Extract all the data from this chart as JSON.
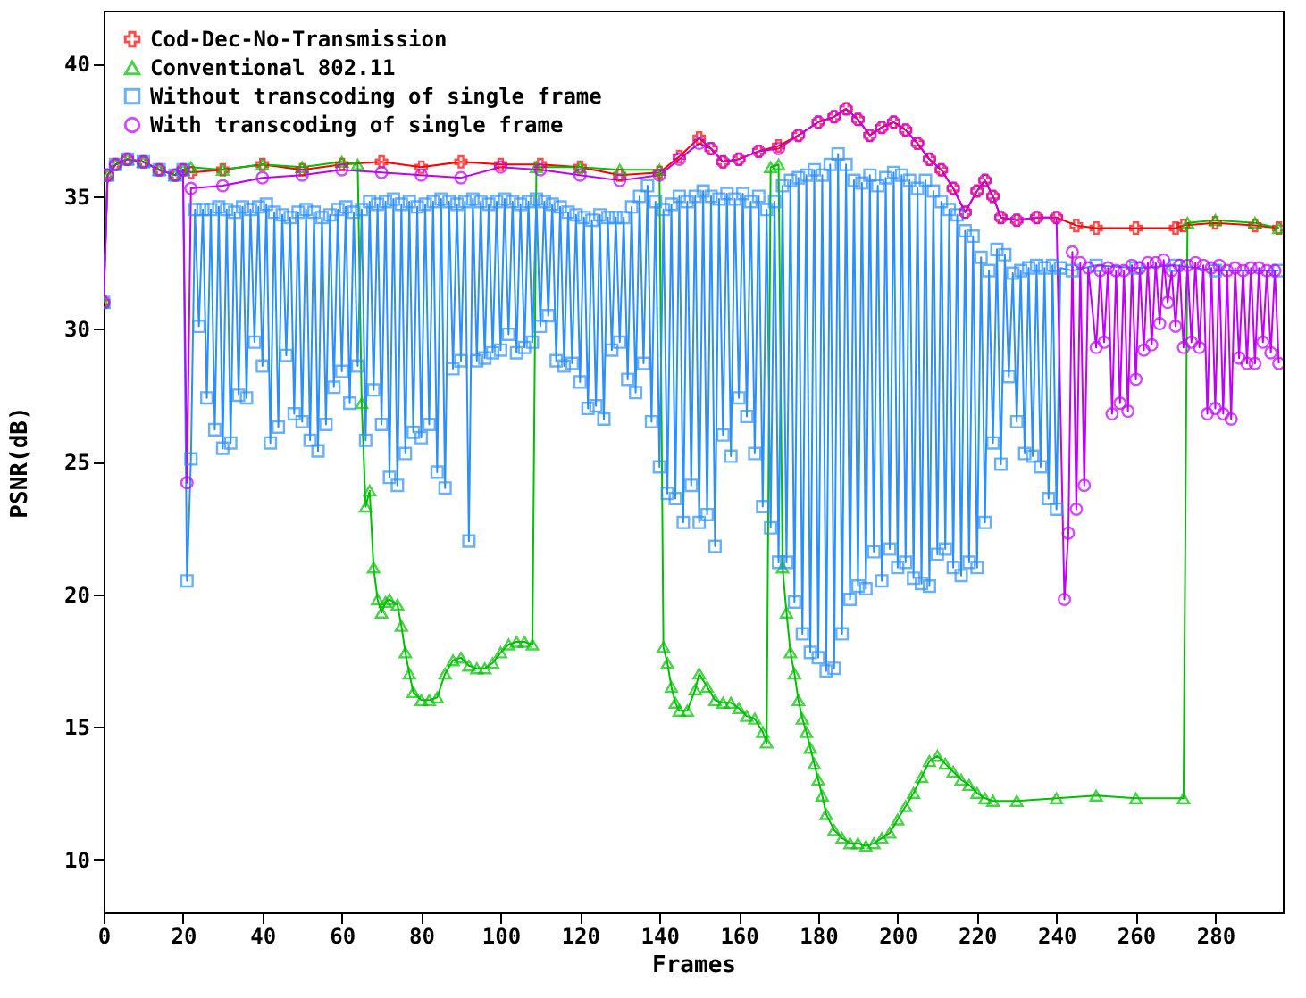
{
  "chart_data": {
    "type": "line",
    "xlabel": "Frames",
    "ylabel": "PSNR(dB)",
    "xlim": [
      0,
      297
    ],
    "xticks": [
      0,
      20,
      40,
      60,
      80,
      100,
      120,
      140,
      160,
      180,
      200,
      220,
      240,
      260,
      280
    ],
    "ylim": [
      8,
      42
    ],
    "yticks": [
      10,
      15,
      20,
      25,
      30,
      35,
      40
    ],
    "grid": false,
    "legend": "top left",
    "series": [
      {
        "name": "Cod-Dec-No-Transmission",
        "color": "#ff0000",
        "marker": "cross",
        "x": [
          0,
          1,
          3,
          6,
          10,
          14,
          18,
          20,
          22,
          30,
          40,
          50,
          60,
          70,
          80,
          90,
          100,
          110,
          120,
          130,
          140,
          145,
          150,
          153,
          156,
          160,
          165,
          170,
          175,
          180,
          184,
          187,
          190,
          193,
          196,
          199,
          202,
          205,
          208,
          211,
          214,
          217,
          220,
          222,
          224,
          226,
          230,
          235,
          240,
          245,
          250,
          260,
          270,
          272,
          280,
          290,
          296
        ],
        "values": [
          31,
          35.8,
          36.2,
          36.4,
          36.3,
          36,
          35.8,
          36,
          35.9,
          36,
          36.2,
          36,
          36.2,
          36.3,
          36.1,
          36.3,
          36.2,
          36.2,
          36.1,
          35.8,
          35.9,
          36.5,
          37.2,
          36.8,
          36.3,
          36.4,
          36.7,
          36.9,
          37.3,
          37.8,
          38,
          38.3,
          37.9,
          37.3,
          37.6,
          37.8,
          37.5,
          37,
          36.4,
          36,
          35.3,
          34.4,
          35.2,
          35.6,
          35,
          34.2,
          34.1,
          34.2,
          34.2,
          33.9,
          33.8,
          33.8,
          33.8,
          33.9,
          34,
          33.9,
          33.8
        ]
      },
      {
        "name": "Conventional 802.11",
        "color": "#00c000",
        "marker": "triangle",
        "x": [
          0,
          1,
          3,
          6,
          10,
          14,
          18,
          20,
          22,
          30,
          40,
          50,
          60,
          64,
          65,
          66,
          67,
          68,
          69,
          70,
          71,
          72,
          74,
          75,
          76,
          77,
          78,
          80,
          82,
          84,
          86,
          88,
          90,
          92,
          94,
          96,
          98,
          100,
          102,
          104,
          106,
          108,
          109,
          120,
          130,
          140,
          141,
          142,
          143,
          144,
          145,
          147,
          149,
          150,
          152,
          154,
          156,
          158,
          160,
          162,
          164,
          166,
          167,
          168,
          170,
          171,
          172,
          173,
          174,
          175,
          176,
          177,
          178,
          179,
          180,
          181,
          182,
          184,
          186,
          188,
          190,
          192,
          194,
          196,
          198,
          200,
          202,
          204,
          206,
          208,
          210,
          212,
          214,
          216,
          218,
          220,
          222,
          224,
          230,
          240,
          250,
          260,
          272,
          273,
          280,
          290,
          296
        ],
        "values": [
          31,
          35.8,
          36.2,
          36.4,
          36.3,
          36,
          35.8,
          36,
          36.1,
          36,
          36.2,
          36.1,
          36.3,
          36.2,
          27.2,
          23.3,
          23.9,
          21,
          19.8,
          19.3,
          19.7,
          19.8,
          19.6,
          18.8,
          17.8,
          17,
          16.3,
          16,
          16,
          16.1,
          17,
          17.5,
          17.6,
          17.3,
          17.2,
          17.2,
          17.4,
          17.8,
          18.1,
          18.2,
          18.2,
          18.1,
          36.1,
          36.1,
          36,
          36,
          18,
          17.4,
          16.5,
          15.9,
          15.6,
          15.6,
          16.4,
          17,
          16.5,
          16,
          15.9,
          15.9,
          15.7,
          15.4,
          15.3,
          14.8,
          14.4,
          36.1,
          36.2,
          21,
          19.3,
          17.8,
          17,
          16,
          15.3,
          14.8,
          14.2,
          13.6,
          13,
          12.4,
          11.7,
          11.1,
          10.8,
          10.6,
          10.6,
          10.5,
          10.6,
          10.8,
          11,
          11.5,
          12,
          12.5,
          13.1,
          13.7,
          13.9,
          13.6,
          13.3,
          13,
          12.8,
          12.5,
          12.3,
          12.2,
          12.2,
          12.3,
          12.4,
          12.3,
          12.3,
          34,
          34.1,
          34,
          33.8
        ]
      },
      {
        "name": "Without transcoding of single frame",
        "color": "#2b8fff",
        "marker": "square",
        "x": [
          0,
          1,
          3,
          6,
          10,
          14,
          18,
          20,
          21,
          22,
          23,
          24,
          25,
          26,
          27,
          28,
          29,
          30,
          31,
          32,
          33,
          34,
          35,
          36,
          37,
          38,
          39,
          40,
          41,
          42,
          43,
          44,
          45,
          46,
          47,
          48,
          49,
          50,
          51,
          52,
          53,
          54,
          55,
          56,
          57,
          58,
          59,
          60,
          61,
          62,
          63,
          64,
          65,
          66,
          67,
          68,
          69,
          70,
          71,
          72,
          73,
          74,
          75,
          76,
          77,
          78,
          79,
          80,
          81,
          82,
          83,
          84,
          85,
          86,
          87,
          88,
          89,
          90,
          91,
          92,
          93,
          94,
          95,
          96,
          97,
          98,
          99,
          100,
          101,
          102,
          103,
          104,
          105,
          106,
          107,
          108,
          109,
          110,
          111,
          112,
          113,
          114,
          115,
          116,
          117,
          118,
          119,
          120,
          121,
          122,
          123,
          124,
          125,
          126,
          127,
          128,
          129,
          130,
          131,
          132,
          133,
          134,
          135,
          136,
          137,
          138,
          139,
          140,
          141,
          142,
          143,
          144,
          145,
          146,
          147,
          148,
          149,
          150,
          151,
          152,
          153,
          154,
          155,
          156,
          157,
          158,
          159,
          160,
          161,
          162,
          163,
          164,
          165,
          166,
          167,
          168,
          169,
          170,
          171,
          172,
          173,
          174,
          175,
          176,
          177,
          178,
          179,
          180,
          181,
          182,
          183,
          184,
          185,
          186,
          187,
          188,
          189,
          190,
          191,
          192,
          193,
          194,
          195,
          196,
          197,
          198,
          199,
          200,
          201,
          202,
          203,
          204,
          205,
          206,
          207,
          208,
          209,
          210,
          211,
          212,
          213,
          214,
          215,
          216,
          217,
          218,
          219,
          220,
          221,
          222,
          223,
          224,
          225,
          226,
          227,
          228,
          229,
          230,
          231,
          232,
          233,
          234,
          235,
          236,
          237,
          238,
          239,
          240,
          241,
          244,
          250,
          260,
          270,
          280,
          296
        ],
        "values": [
          31,
          35.8,
          36.2,
          36.4,
          36.3,
          36,
          35.8,
          36,
          20.5,
          25.1,
          34.5,
          30.1,
          34.5,
          27.4,
          34.5,
          26.2,
          34.6,
          25.5,
          34.5,
          25.7,
          34.4,
          27.5,
          34.6,
          27.4,
          34.5,
          29.5,
          34.6,
          28.6,
          34.7,
          25.7,
          34.4,
          26.3,
          34.3,
          29,
          34.2,
          26.8,
          34.4,
          26.5,
          34.5,
          25.8,
          34.4,
          25.4,
          34.2,
          26.4,
          34.3,
          27.8,
          34.5,
          28.4,
          34.6,
          27.2,
          34.4,
          28.6,
          34.5,
          25.8,
          34.8,
          27.7,
          34.7,
          26.4,
          34.8,
          24.4,
          34.9,
          24.1,
          34.7,
          25.3,
          34.8,
          26.1,
          34.6,
          25.9,
          34.7,
          26.4,
          34.8,
          24.6,
          34.9,
          24,
          34.8,
          28.5,
          34.7,
          28.8,
          34.8,
          22,
          34.9,
          28.8,
          34.8,
          28.9,
          34.7,
          29.1,
          34.8,
          29.2,
          34.9,
          29.8,
          34.8,
          29.1,
          34.7,
          29.3,
          34.8,
          29.5,
          34.9,
          30.1,
          34.8,
          30.5,
          34.7,
          28.8,
          34.6,
          28.6,
          34.4,
          28.7,
          34.3,
          28,
          34.2,
          27,
          34.1,
          27.1,
          34.3,
          26.6,
          34.2,
          29.2,
          34.2,
          29.5,
          34.2,
          28.1,
          34.6,
          27.6,
          35,
          28.7,
          35.4,
          26.5,
          34.8,
          24.8,
          34.5,
          23.8,
          34.7,
          23.6,
          35,
          22.7,
          34.8,
          24.1,
          35,
          22.7,
          35.2,
          23,
          35,
          21.8,
          34.9,
          26,
          35.1,
          25.2,
          34.9,
          27.4,
          35.1,
          26.7,
          34.8,
          25.3,
          35,
          23.3,
          34.5,
          22.5,
          34.8,
          21.2,
          35.4,
          21.2,
          35.6,
          19.7,
          35.7,
          18.5,
          35.8,
          17.8,
          36,
          17.6,
          35.8,
          17.1,
          36.2,
          17.2,
          36.6,
          18.5,
          36.2,
          19.8,
          35.6,
          20.3,
          35.5,
          20.2,
          35.8,
          21.6,
          35.4,
          20.5,
          35.7,
          21.7,
          35.9,
          21,
          35.8,
          21.2,
          35.6,
          20.6,
          35.3,
          20.4,
          35.6,
          20.3,
          35.2,
          21.5,
          34.8,
          21.7,
          34.5,
          21,
          34.3,
          20.7,
          33.7,
          21.2,
          33.5,
          21,
          32.7,
          22.7,
          32.2,
          25.7,
          33,
          24.9,
          32.8,
          28.2,
          32.1,
          26.5,
          32.2,
          25.3,
          32.3,
          25.2,
          32.4,
          24.8,
          32.3,
          23.6,
          32.4,
          23.2,
          32.3,
          32.2,
          32.4,
          32.3,
          32.4,
          32.2,
          32.2
        ]
      },
      {
        "name": "With transcoding of single frame",
        "color": "#c000ff",
        "marker": "circle",
        "x": [
          0,
          1,
          3,
          6,
          10,
          14,
          18,
          20,
          21,
          22,
          30,
          40,
          50,
          60,
          70,
          80,
          90,
          100,
          110,
          120,
          130,
          140,
          145,
          150,
          153,
          156,
          160,
          165,
          170,
          175,
          180,
          184,
          187,
          190,
          193,
          196,
          199,
          202,
          205,
          208,
          211,
          214,
          217,
          220,
          222,
          224,
          226,
          230,
          235,
          240,
          242,
          243,
          244,
          245,
          246,
          247,
          248,
          250,
          251,
          252,
          253,
          254,
          255,
          256,
          257,
          258,
          259,
          260,
          261,
          262,
          263,
          264,
          265,
          266,
          267,
          268,
          269,
          270,
          271,
          272,
          273,
          274,
          275,
          276,
          277,
          278,
          279,
          280,
          281,
          282,
          283,
          284,
          285,
          286,
          287,
          288,
          289,
          290,
          291,
          292,
          293,
          294,
          295,
          296
        ],
        "values": [
          31,
          35.8,
          36.2,
          36.4,
          36.3,
          36,
          35.8,
          36,
          24.2,
          35.3,
          35.4,
          35.7,
          35.8,
          36,
          35.9,
          35.8,
          35.7,
          36.1,
          36,
          35.8,
          35.6,
          35.8,
          36.4,
          37,
          36.8,
          36.3,
          36.4,
          36.7,
          36.8,
          37.3,
          37.8,
          38,
          38.3,
          37.9,
          37.3,
          37.6,
          37.8,
          37.5,
          37,
          36.4,
          36,
          35.3,
          34.4,
          35.2,
          35.6,
          35,
          34.2,
          34.1,
          34.2,
          34.2,
          19.8,
          22.3,
          32.9,
          23.2,
          32.5,
          24.1,
          32.3,
          29.3,
          32.2,
          29.5,
          32.3,
          26.8,
          32.2,
          27.2,
          32.2,
          26.9,
          32.4,
          28.1,
          32.3,
          29.2,
          32.5,
          29.4,
          32.5,
          30.2,
          32.6,
          31,
          32.2,
          30.1,
          32.4,
          29.3,
          32.4,
          29.5,
          32.5,
          29.3,
          32.4,
          26.8,
          32.3,
          27,
          32.4,
          26.8,
          32.2,
          26.6,
          32.3,
          28.9,
          32.2,
          28.7,
          32.3,
          28.7,
          32.3,
          29.5,
          32.2,
          29.1,
          32.2,
          28.7
        ]
      }
    ]
  }
}
